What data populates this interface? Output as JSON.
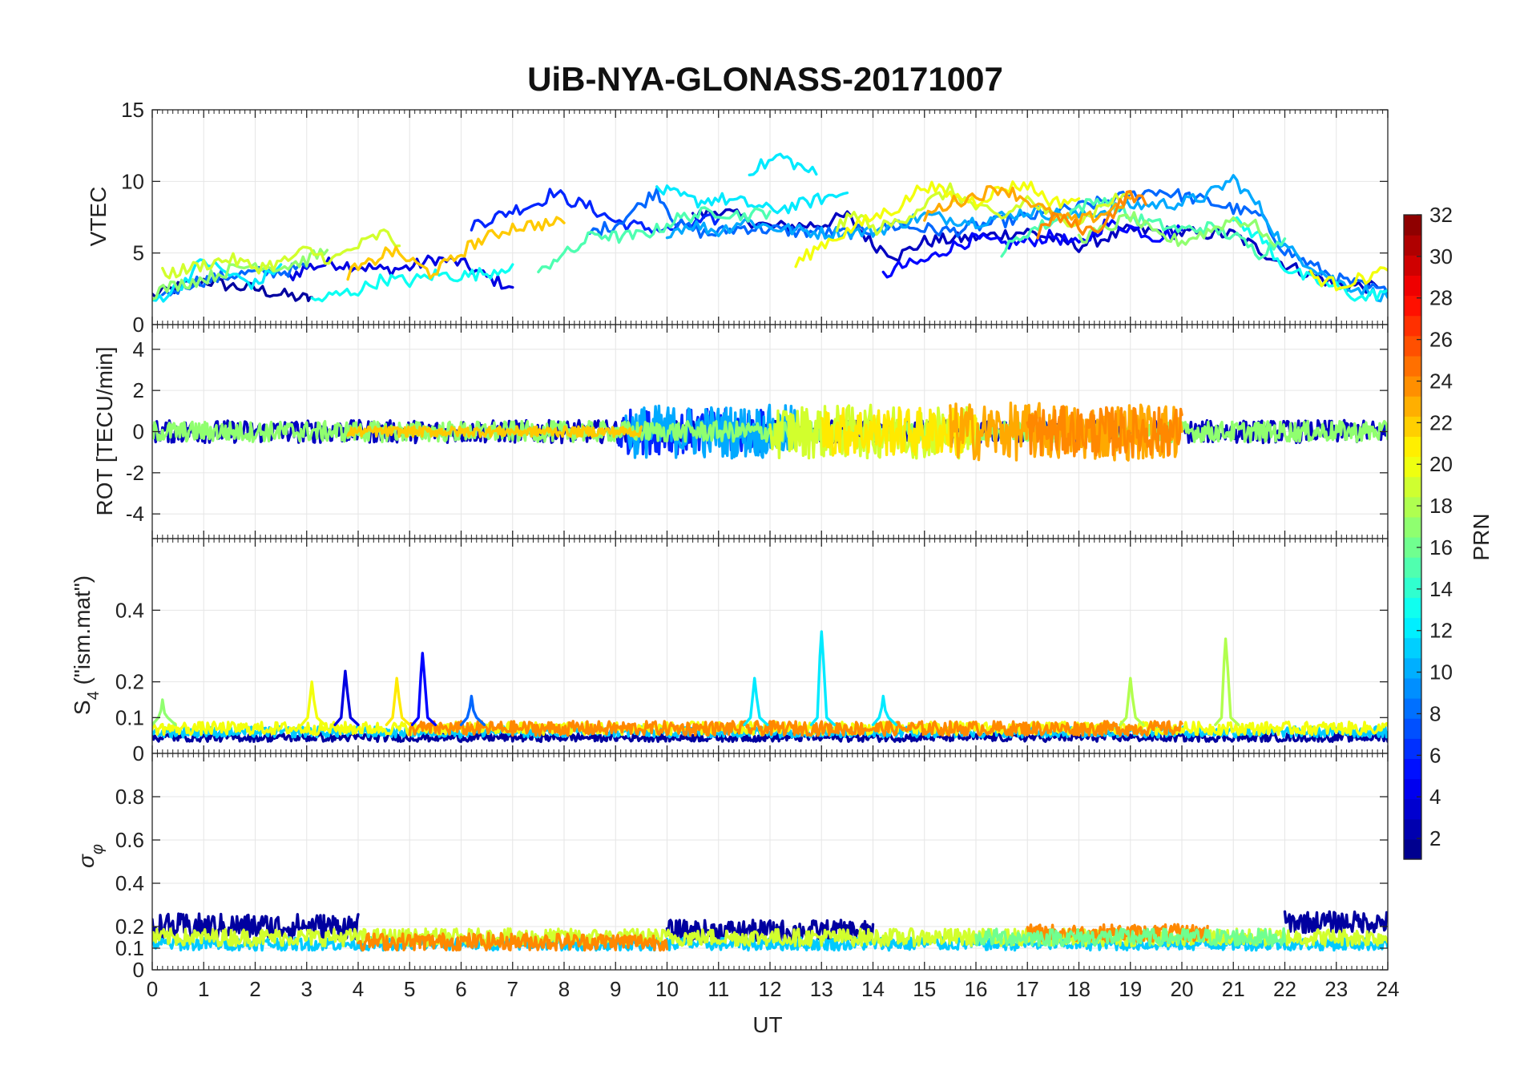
{
  "chart_data": {
    "type": "line",
    "title": "UiB-NYA-GLONASS-20171007",
    "xlabel": "UT",
    "xlim": [
      0,
      24
    ],
    "x_ticks": [
      "0",
      "1",
      "2",
      "3",
      "4",
      "5",
      "6",
      "7",
      "8",
      "9",
      "10",
      "11",
      "12",
      "13",
      "14",
      "15",
      "16",
      "17",
      "18",
      "19",
      "20",
      "21",
      "22",
      "23",
      "24"
    ],
    "grid": true,
    "colorbar": {
      "label": "PRN",
      "colormap": "jet",
      "range": [
        1,
        32
      ],
      "ticks": [
        "2",
        "4",
        "6",
        "8",
        "10",
        "12",
        "14",
        "16",
        "18",
        "20",
        "22",
        "24",
        "26",
        "28",
        "30",
        "32"
      ],
      "tick_values": [
        2,
        4,
        6,
        8,
        10,
        12,
        14,
        16,
        18,
        20,
        22,
        24,
        26,
        28,
        30,
        32
      ]
    },
    "panels": [
      {
        "id": "vtec",
        "ylabel": "VTEC",
        "ylim": [
          0,
          15
        ],
        "y_ticks": [
          0,
          5,
          10,
          15
        ],
        "y_tick_labels": [
          "0",
          "5",
          "10",
          "15"
        ],
        "series": [
          {
            "prn": 2,
            "x": [
              0,
              0.5,
              1,
              1.5,
              2,
              2.5,
              3,
              3.1
            ],
            "y": [
              2,
              2.6,
              3.1,
              2.7,
              2.5,
              2.1,
              1.8,
              1.9
            ]
          },
          {
            "prn": 4,
            "x": [
              2.6,
              3,
              3.5,
              4,
              4.5,
              5,
              5.5,
              6,
              6.5,
              7
            ],
            "y": [
              3.2,
              4,
              4.3,
              4.1,
              3.8,
              4,
              4.6,
              4.3,
              3.3,
              2.6
            ]
          },
          {
            "prn": 3,
            "x": [
              10.5,
              11,
              12,
              13,
              13.5,
              14,
              14.5,
              15,
              16,
              17,
              18,
              19,
              20,
              21,
              22,
              23,
              23.8
            ],
            "y": [
              7.5,
              8,
              6.8,
              7,
              7.6,
              5.6,
              4.8,
              5.8,
              6.1,
              6.5,
              5.5,
              6.6,
              6.4,
              6.3,
              4.2,
              2.8,
              2.6
            ]
          },
          {
            "prn": 5,
            "x": [
              14.2,
              14.5,
              15,
              15.5,
              16,
              16.5,
              17,
              17.5,
              18,
              18.5,
              19,
              19.5,
              20
            ],
            "y": [
              3.4,
              4,
              4.4,
              5.4,
              6,
              5.6,
              5.8,
              6.2,
              5.5,
              7,
              6.8,
              6.1,
              6.6
            ]
          },
          {
            "prn": 6,
            "x": [
              6.2,
              6.6,
              7,
              7.5,
              7.8,
              8,
              8.5,
              9,
              9.5,
              10,
              10.5,
              11
            ],
            "y": [
              7,
              7.4,
              8,
              8.5,
              9.3,
              8.8,
              8.2,
              7.2,
              6.8,
              6.6,
              7,
              7.4
            ]
          },
          {
            "prn": 8,
            "x": [
              0.2,
              0.5,
              0.8,
              1.2,
              1.6,
              2,
              2.5,
              3
            ],
            "y": [
              2,
              2.5,
              3,
              3.2,
              3.5,
              3.6,
              3.7,
              4
            ]
          },
          {
            "prn": 8,
            "x": [
              8.5,
              9,
              9.5,
              9.8,
              10.2,
              10.8,
              11.5,
              12.5,
              13.5,
              14.5,
              15.5,
              16.5,
              17.5,
              18.5,
              19.5,
              20.5,
              21,
              21.5,
              22,
              23,
              24
            ],
            "y": [
              6.4,
              7,
              8.4,
              9.4,
              7,
              6.3,
              6.8,
              6.5,
              6.4,
              6.9,
              6.5,
              7.2,
              7.8,
              8.6,
              9.4,
              8.6,
              8.1,
              7.6,
              5.2,
              3.2,
              2.2
            ]
          },
          {
            "prn": 10,
            "x": [
              10,
              10.5,
              11,
              11.5,
              12,
              12.5,
              13,
              14,
              15,
              16,
              17,
              18,
              19,
              20,
              20.5,
              21,
              21.5,
              22,
              23,
              24
            ],
            "y": [
              6.5,
              7,
              6.5,
              7.3,
              6.8,
              6.6,
              6.4,
              6.5,
              7.6,
              7.2,
              7.9,
              7.6,
              8.3,
              8.5,
              9,
              10.2,
              8.2,
              5.4,
              3,
              1.9
            ]
          },
          {
            "prn": 12,
            "x": [
              9.8,
              10.2,
              10.6,
              11,
              11.5,
              12,
              12.5,
              13,
              13.5
            ],
            "y": [
              9.5,
              9,
              8.6,
              8.8,
              8.5,
              8,
              8.3,
              8.8,
              9.2
            ]
          },
          {
            "prn": 12,
            "x": [
              11.6,
              11.9,
              12.2,
              12.6,
              12.9
            ],
            "y": [
              10.8,
              11.2,
              11.8,
              11,
              10.5
            ]
          },
          {
            "prn": 12,
            "x": [
              0,
              0.5,
              1,
              1.5,
              2,
              2.5
            ],
            "y": [
              1.6,
              2.6,
              4.5,
              3.5,
              2.8,
              4.2
            ]
          },
          {
            "prn": 13,
            "x": [
              3.1,
              3.5,
              4,
              4.5,
              5,
              5.5,
              6,
              6.5,
              7
            ],
            "y": [
              1.6,
              2,
              2.4,
              3.2,
              3,
              3.5,
              3.4,
              3.6,
              4.2
            ]
          },
          {
            "prn": 13,
            "x": [
              21,
              21.5,
              22,
              22.5,
              23,
              23.5,
              24
            ],
            "y": [
              7.2,
              6.2,
              4,
              3.1,
              2.6,
              1.8,
              2.4
            ]
          },
          {
            "prn": 15,
            "x": [
              7.5,
              7.8,
              8.2,
              8.6,
              9,
              9.4,
              9.8,
              10.2,
              10.6,
              11,
              11.5,
              12
            ],
            "y": [
              3.4,
              4.6,
              5.2,
              6.4,
              6.1,
              6.2,
              6.6,
              7.4,
              7.7,
              7.9,
              7.6,
              7.9
            ]
          },
          {
            "prn": 15,
            "x": [
              16.5,
              17,
              17.5,
              18,
              18.5,
              19,
              19.5,
              20,
              20.5,
              21,
              21.5,
              22
            ],
            "y": [
              5,
              6.5,
              7.2,
              8.2,
              8.8,
              7.5,
              7,
              6.6,
              6.8,
              6.2,
              5,
              6
            ]
          },
          {
            "prn": 17,
            "x": [
              0,
              0.5,
              1,
              1.5,
              2,
              2.5,
              3,
              3.4
            ],
            "y": [
              2.2,
              2.8,
              3.2,
              3.8,
              4.2,
              4,
              4.5,
              5.2
            ]
          },
          {
            "prn": 17,
            "x": [
              18,
              18.5,
              19,
              19.5,
              20,
              20.5,
              21,
              21.5,
              21.8
            ],
            "y": [
              6,
              6.6,
              7.6,
              6.2,
              5.8,
              6.5,
              7.4,
              6.8,
              5.5
            ]
          },
          {
            "prn": 19,
            "x": [
              0.2,
              0.6,
              1,
              1.5,
              2,
              2.5,
              3,
              3.5,
              4,
              4.5,
              4.8
            ],
            "y": [
              3.5,
              3.8,
              4.2,
              4.6,
              4,
              4.3,
              5.2,
              4.5,
              5.5,
              6.4,
              5.5
            ]
          },
          {
            "prn": 19,
            "x": [
              13.3,
              13.7,
              14,
              14.5,
              15,
              15.5,
              16,
              16.5,
              17,
              17.5,
              18,
              18.5,
              19
            ],
            "y": [
              6.8,
              7.8,
              6.6,
              7.2,
              8.4,
              9.4,
              8.2,
              7.4,
              8.8,
              7.5,
              7.2,
              8.4,
              9.2
            ]
          },
          {
            "prn": 20,
            "x": [
              12.5,
              13,
              13.5,
              14,
              14.5,
              15,
              15.5,
              16,
              16.5,
              17,
              17.5,
              18
            ],
            "y": [
              4.2,
              5.6,
              6.5,
              7.5,
              8.2,
              9.8,
              9,
              8.6,
              9.5,
              9.8,
              8.5,
              8.8
            ]
          },
          {
            "prn": 20,
            "x": [
              22.5,
              23,
              23.5,
              24
            ],
            "y": [
              3.4,
              2.8,
              3.2,
              3.8
            ]
          },
          {
            "prn": 22,
            "x": [
              3.8,
              4.2,
              4.6,
              5,
              5.4,
              5.8,
              6.2,
              6.6,
              7,
              7.5,
              8
            ],
            "y": [
              3.6,
              4.2,
              5.2,
              4.5,
              3.6,
              4.4,
              5.6,
              6.2,
              6.8,
              7,
              7.1
            ]
          },
          {
            "prn": 23,
            "x": [
              15,
              15.5,
              16,
              16.5,
              17,
              17.5,
              18,
              18.5,
              19
            ],
            "y": [
              7.6,
              8.5,
              9,
              9.6,
              8.7,
              7.6,
              7.2,
              7.8,
              8.8
            ]
          },
          {
            "prn": 24,
            "x": [
              17.2,
              17.5,
              18,
              18.3,
              18.6,
              19,
              19.3
            ],
            "y": [
              6.2,
              7.6,
              6.8,
              6.5,
              7.6,
              9.2,
              8.4
            ]
          }
        ]
      },
      {
        "id": "rot",
        "ylabel": "ROT [TECU/min]",
        "ylim": [
          -5.2,
          5.2
        ],
        "y_ticks": [
          -4,
          -2,
          0,
          2,
          4
        ],
        "y_tick_labels": [
          "-4",
          "-2",
          "0",
          "2",
          "4"
        ],
        "noise_series": [
          {
            "prn": 3,
            "x_range": [
              0,
              24
            ],
            "amp": 0.55
          },
          {
            "prn": 6,
            "x_range": [
              9,
              12
            ],
            "amp": 1.1
          },
          {
            "prn": 10,
            "x_range": [
              9.2,
              12.5
            ],
            "amp": 1.3
          },
          {
            "prn": 17,
            "x_range": [
              0,
              24
            ],
            "amp": 0.5
          },
          {
            "prn": 19,
            "x_range": [
              12,
              16
            ],
            "amp": 1.3
          },
          {
            "prn": 21,
            "x_range": [
              13,
              16
            ],
            "amp": 1.2
          },
          {
            "prn": 23,
            "x_range": [
              15.5,
              20
            ],
            "amp": 1.4
          },
          {
            "prn": 24,
            "x_range": [
              17,
              20
            ],
            "amp": 1.2
          },
          {
            "prn": 22,
            "x_range": [
              3.8,
              9.5
            ],
            "amp": 0.25
          }
        ]
      },
      {
        "id": "s4",
        "ylabel": "S4 (\"ism.mat\")",
        "ylabel_main": "S",
        "ylabel_sub": "4",
        "ylabel_rest": " (\"ism.mat\")",
        "ylim": [
          0,
          0.6
        ],
        "y_ticks": [
          0,
          0.1,
          0.2,
          0.4
        ],
        "y_tick_labels": [
          "0",
          "0.1",
          "0.2",
          "0.4"
        ],
        "baseline_series": [
          {
            "prn": 2,
            "x_range": [
              0,
              24
            ],
            "base": 0.045,
            "amp": 0.012
          },
          {
            "prn": 11,
            "x_range": [
              0,
              24
            ],
            "base": 0.06,
            "amp": 0.015
          },
          {
            "prn": 20,
            "x_range": [
              0,
              24
            ],
            "base": 0.07,
            "amp": 0.018
          },
          {
            "prn": 24,
            "x_range": [
              5,
              20
            ],
            "base": 0.07,
            "amp": 0.02
          }
        ],
        "spikes": [
          {
            "prn": 4,
            "x": 3.75,
            "y": 0.23
          },
          {
            "prn": 5,
            "x": 5.25,
            "y": 0.28
          },
          {
            "prn": 8,
            "x": 6.2,
            "y": 0.16
          },
          {
            "prn": 20,
            "x": 3.1,
            "y": 0.2
          },
          {
            "prn": 21,
            "x": 4.75,
            "y": 0.21
          },
          {
            "prn": 12,
            "x": 11.7,
            "y": 0.21
          },
          {
            "prn": 12,
            "x": 13.0,
            "y": 0.34
          },
          {
            "prn": 12,
            "x": 14.2,
            "y": 0.16
          },
          {
            "prn": 18,
            "x": 19.0,
            "y": 0.21
          },
          {
            "prn": 18,
            "x": 20.85,
            "y": 0.32
          },
          {
            "prn": 17,
            "x": 0.2,
            "y": 0.15
          }
        ]
      },
      {
        "id": "sigma_phi",
        "ylabel": "σφ",
        "ylim": [
          0,
          1
        ],
        "y_ticks": [
          0,
          0.1,
          0.2,
          0.4,
          0.6,
          0.8
        ],
        "y_tick_labels": [
          "0",
          "0.1",
          "0.2",
          "0.4",
          "0.6",
          "0.8"
        ],
        "noise_series": [
          {
            "prn": 2,
            "x_range": [
              0,
              4
            ],
            "base": 0.2,
            "amp": 0.06
          },
          {
            "prn": 2,
            "x_range": [
              10,
              14
            ],
            "base": 0.18,
            "amp": 0.05
          },
          {
            "prn": 2,
            "x_range": [
              22,
              24
            ],
            "base": 0.22,
            "amp": 0.05
          },
          {
            "prn": 11,
            "x_range": [
              0,
              24
            ],
            "base": 0.12,
            "amp": 0.03
          },
          {
            "prn": 19,
            "x_range": [
              0,
              24
            ],
            "base": 0.15,
            "amp": 0.04
          },
          {
            "prn": 24,
            "x_range": [
              4,
              10
            ],
            "base": 0.13,
            "amp": 0.04
          },
          {
            "prn": 24,
            "x_range": [
              17,
              20.5
            ],
            "base": 0.17,
            "amp": 0.04
          },
          {
            "prn": 16,
            "x_range": [
              16,
              22
            ],
            "base": 0.15,
            "amp": 0.04
          }
        ]
      }
    ]
  }
}
